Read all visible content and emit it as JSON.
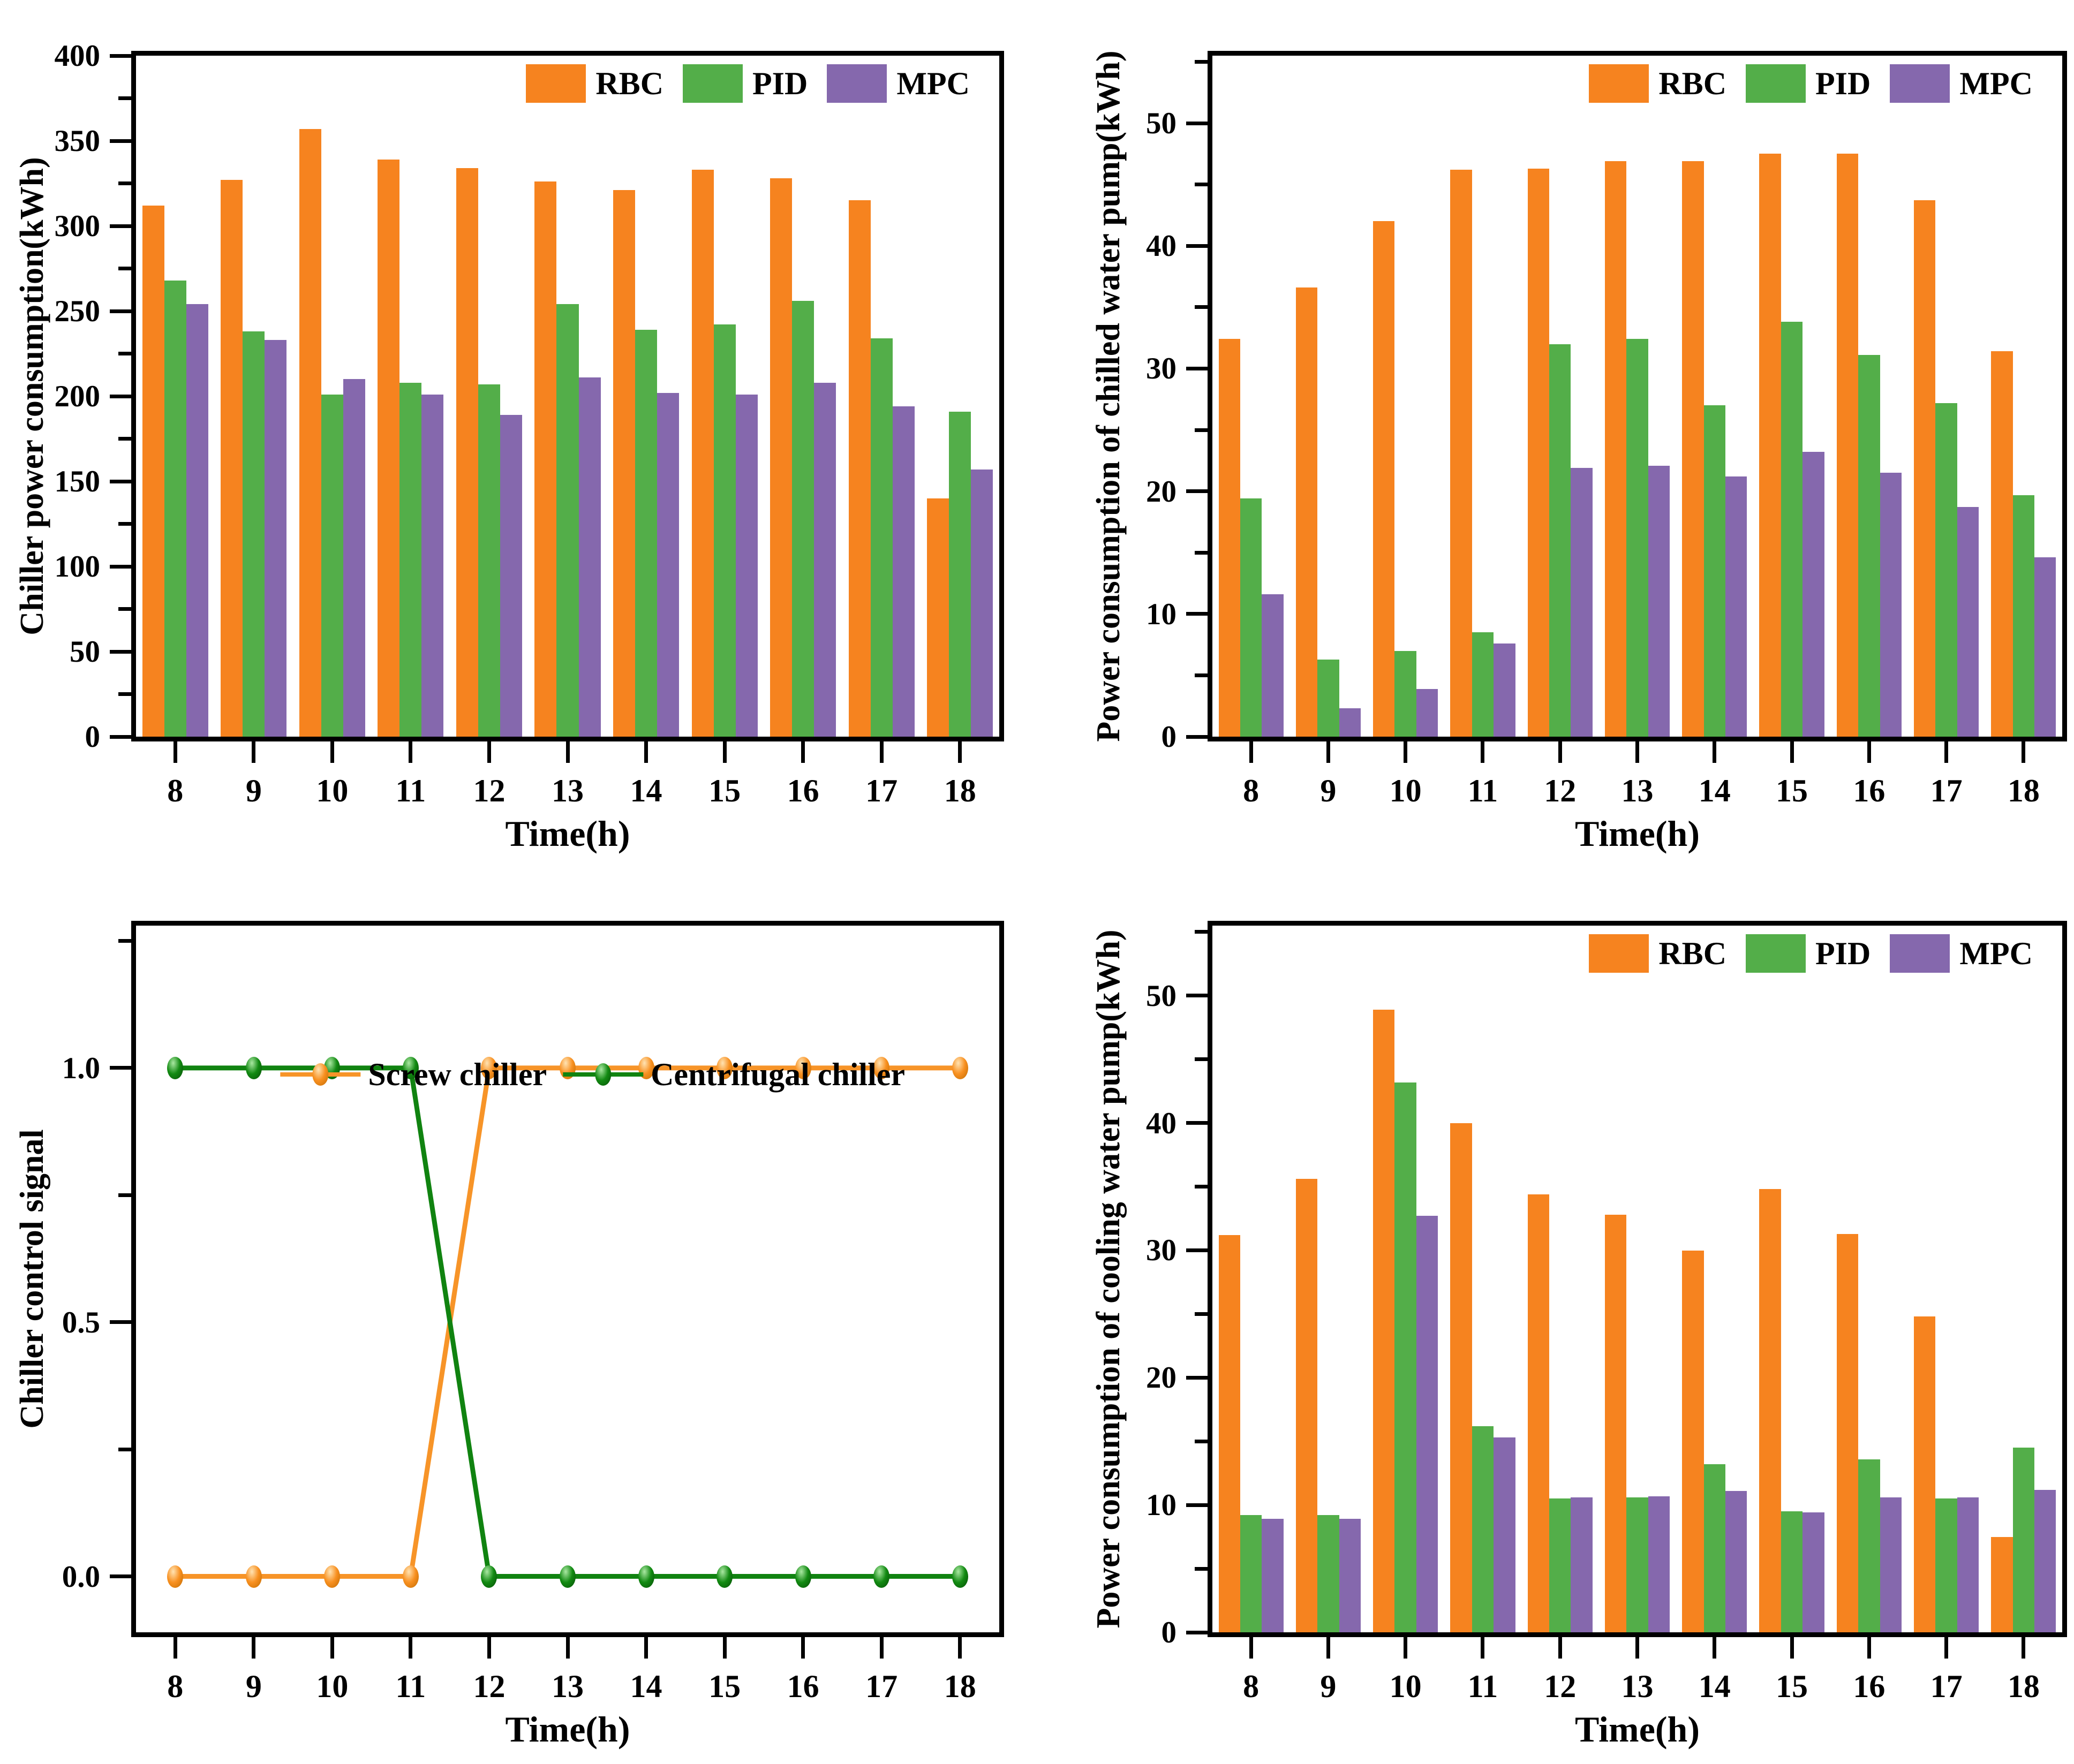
{
  "figure": {
    "background": "#ffffff"
  },
  "colors": {
    "rbc": "#F6831F",
    "pid": "#53AE49",
    "mpc": "#8568AD",
    "screw_line": "#F79428",
    "screw_mid": "#F89020",
    "screw_dark": "#C06A00",
    "screw_light": "#FFE3B3",
    "centrifugal_line": "#108310",
    "centrifugal_mid": "#128A12",
    "centrifugal_dark": "#064D06",
    "centrifugal_light": "#AAE8A2",
    "axis": "#000000",
    "text": "#000000"
  },
  "chart_data": [
    {
      "name": "chiller-power-consumption",
      "type": "bar",
      "title": "",
      "xlabel": "Time(h)",
      "ylabel": "Chiller power consumption(kWh)",
      "categories": [
        "8",
        "9",
        "10",
        "11",
        "12",
        "13",
        "14",
        "15",
        "16",
        "17",
        "18"
      ],
      "ylim": [
        0,
        400
      ],
      "yticks": [
        0,
        50,
        100,
        150,
        200,
        250,
        300,
        350,
        400
      ],
      "ytick_labels": [
        "0",
        "50",
        "100",
        "150",
        "200",
        "250",
        "300",
        "350",
        "400"
      ],
      "minor_step": 25,
      "grid": false,
      "legend_position": "top-right-inside",
      "series": [
        {
          "name": "RBC",
          "color_key": "rbc",
          "values": [
            312,
            327,
            357,
            339,
            334,
            326,
            321,
            333,
            328,
            315,
            140
          ]
        },
        {
          "name": "PID",
          "color_key": "pid",
          "values": [
            268,
            238,
            201,
            208,
            207,
            254,
            239,
            242,
            256,
            234,
            191
          ]
        },
        {
          "name": "MPC",
          "color_key": "mpc",
          "values": [
            254,
            233,
            210,
            201,
            189,
            211,
            202,
            201,
            208,
            194,
            157
          ]
        }
      ]
    },
    {
      "name": "chilled-water-pump-power",
      "type": "bar",
      "title": "",
      "xlabel": "Time(h)",
      "ylabel": "Power consumption of chilled water pump(kWh)",
      "categories": [
        "8",
        "9",
        "10",
        "11",
        "12",
        "13",
        "14",
        "15",
        "16",
        "17",
        "18"
      ],
      "ylim": [
        0,
        55.5
      ],
      "yticks": [
        0,
        10,
        20,
        30,
        40,
        50
      ],
      "ytick_labels": [
        "0",
        "10",
        "20",
        "30",
        "40",
        "50"
      ],
      "minor_step": 5,
      "grid": false,
      "legend_position": "top-right-inside",
      "series": [
        {
          "name": "RBC",
          "color_key": "rbc",
          "values": [
            32.4,
            36.6,
            42.0,
            46.2,
            46.3,
            46.9,
            46.9,
            47.5,
            47.5,
            43.7,
            31.4
          ]
        },
        {
          "name": "PID",
          "color_key": "pid",
          "values": [
            19.4,
            6.3,
            7.0,
            8.5,
            32.0,
            32.4,
            27.0,
            33.8,
            31.1,
            27.2,
            19.7
          ]
        },
        {
          "name": "MPC",
          "color_key": "mpc",
          "values": [
            11.6,
            2.3,
            3.9,
            7.6,
            21.9,
            22.1,
            21.2,
            23.2,
            21.5,
            18.7,
            14.6
          ]
        }
      ]
    },
    {
      "name": "chiller-control-signal",
      "type": "line",
      "title": "",
      "xlabel": "Time(h)",
      "ylabel": "Chiller control signal",
      "categories": [
        "8",
        "9",
        "10",
        "11",
        "12",
        "13",
        "14",
        "15",
        "16",
        "17",
        "18"
      ],
      "x": [
        8,
        9,
        10,
        11,
        12,
        13,
        14,
        15,
        16,
        17,
        18
      ],
      "ylim": [
        -0.11,
        1.28
      ],
      "yticks": [
        0.0,
        0.5,
        1.0
      ],
      "ytick_labels": [
        "0.0",
        "0.5",
        "1.0"
      ],
      "minor_step": 0.25,
      "grid": false,
      "legend_position": "top-center-inside",
      "series": [
        {
          "name": "Screw chiller",
          "color_key": "screw_line",
          "light_key": "screw_light",
          "mid_key": "screw_mid",
          "dark_key": "screw_dark",
          "values": [
            0,
            0,
            0,
            0,
            1,
            1,
            1,
            1,
            1,
            1,
            1
          ]
        },
        {
          "name": "Centrifugal chiller",
          "color_key": "centrifugal_line",
          "light_key": "centrifugal_light",
          "mid_key": "centrifugal_mid",
          "dark_key": "centrifugal_dark",
          "values": [
            1,
            1,
            1,
            1,
            0,
            0,
            0,
            0,
            0,
            0,
            0
          ]
        }
      ]
    },
    {
      "name": "cooling-water-pump-power",
      "type": "bar",
      "title": "",
      "xlabel": "Time(h)",
      "ylabel": "Power consumption of cooling water pump(kWh)",
      "categories": [
        "8",
        "9",
        "10",
        "11",
        "12",
        "13",
        "14",
        "15",
        "16",
        "17",
        "18"
      ],
      "ylim": [
        0,
        55.5
      ],
      "yticks": [
        0,
        10,
        20,
        30,
        40,
        50
      ],
      "ytick_labels": [
        "0",
        "10",
        "20",
        "30",
        "40",
        "50"
      ],
      "minor_step": 5,
      "grid": false,
      "legend_position": "top-right-inside",
      "series": [
        {
          "name": "RBC",
          "color_key": "rbc",
          "values": [
            31.2,
            35.6,
            48.9,
            40.0,
            34.4,
            32.8,
            30.0,
            34.8,
            31.3,
            24.8,
            7.5
          ]
        },
        {
          "name": "PID",
          "color_key": "pid",
          "values": [
            9.2,
            9.2,
            43.2,
            16.2,
            10.5,
            10.6,
            13.2,
            9.5,
            13.6,
            10.5,
            14.5
          ]
        },
        {
          "name": "MPC",
          "color_key": "mpc",
          "values": [
            8.9,
            8.9,
            32.7,
            15.3,
            10.6,
            10.7,
            11.1,
            9.4,
            10.6,
            10.6,
            11.2
          ]
        }
      ]
    }
  ]
}
